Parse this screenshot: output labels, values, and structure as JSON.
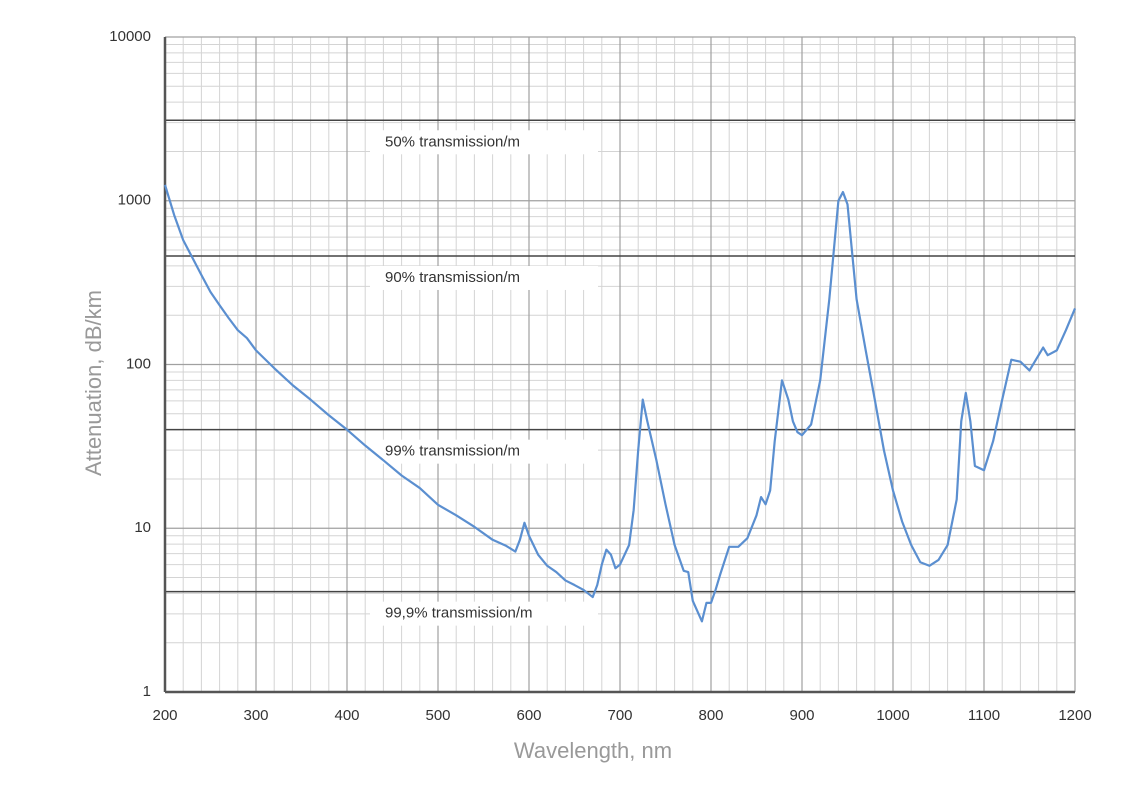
{
  "chart_data": {
    "type": "line",
    "log_y": true,
    "grid": true,
    "x_label": "Wavelength, nm",
    "y_label": "Attenuation, dB/km",
    "xlim": [
      200,
      1200
    ],
    "xticks": [
      200,
      300,
      400,
      500,
      600,
      700,
      800,
      900,
      1000,
      1100,
      1200
    ],
    "ylim": [
      1,
      10000
    ],
    "yticks": [
      1,
      10,
      100,
      1000,
      10000
    ],
    "reference_lines": [
      {
        "label": "50% transmission/m",
        "value": 3100
      },
      {
        "label": "90% transmission/m",
        "value": 460
      },
      {
        "label": "99% transmission/m",
        "value": 40
      },
      {
        "label": "99,9% transmission/m",
        "value": 4.1
      }
    ],
    "x": [
      200,
      210,
      220,
      230,
      240,
      250,
      260,
      270,
      280,
      290,
      300,
      320,
      340,
      360,
      380,
      400,
      420,
      440,
      460,
      480,
      500,
      520,
      540,
      560,
      575,
      585,
      590,
      595,
      600,
      610,
      620,
      630,
      640,
      650,
      660,
      670,
      675,
      680,
      685,
      690,
      695,
      700,
      710,
      715,
      720,
      725,
      730,
      740,
      750,
      760,
      770,
      775,
      780,
      790,
      795,
      800,
      805,
      810,
      820,
      830,
      840,
      850,
      855,
      860,
      865,
      870,
      878,
      885,
      890,
      895,
      900,
      910,
      920,
      930,
      940,
      945,
      950,
      960,
      970,
      980,
      990,
      1000,
      1010,
      1020,
      1030,
      1040,
      1050,
      1060,
      1070,
      1075,
      1080,
      1085,
      1090,
      1100,
      1110,
      1120,
      1130,
      1140,
      1150,
      1160,
      1165,
      1170,
      1180,
      1190,
      1200
    ],
    "series": [
      {
        "name": "Attenuation",
        "color": "#5b8fd0",
        "values": [
          1250,
          820,
          575,
          450,
          352,
          277,
          230,
          192,
          162,
          145,
          122,
          95,
          75,
          61,
          49,
          40,
          32,
          26,
          21,
          17.6,
          13.9,
          12,
          10.2,
          8.5,
          7.8,
          7.2,
          8.5,
          10.8,
          9,
          6.9,
          5.9,
          5.4,
          4.8,
          4.5,
          4.2,
          3.8,
          4.5,
          6,
          7.4,
          6.9,
          5.7,
          6,
          7.9,
          12.9,
          30,
          61,
          45,
          26,
          14,
          7.9,
          5.5,
          5.4,
          3.6,
          2.7,
          3.5,
          3.5,
          4.2,
          5.2,
          7.7,
          7.7,
          8.7,
          12,
          15.5,
          14,
          17,
          34,
          80,
          61,
          45,
          38.6,
          37,
          43,
          80,
          250,
          1000,
          1130,
          950,
          250,
          122,
          61,
          30,
          17,
          11,
          7.9,
          6.2,
          5.9,
          6.4,
          7.9,
          15,
          45,
          67,
          45,
          24,
          22.6,
          34,
          61,
          107,
          104,
          92,
          114,
          127,
          114,
          122,
          162,
          220
        ]
      }
    ]
  }
}
